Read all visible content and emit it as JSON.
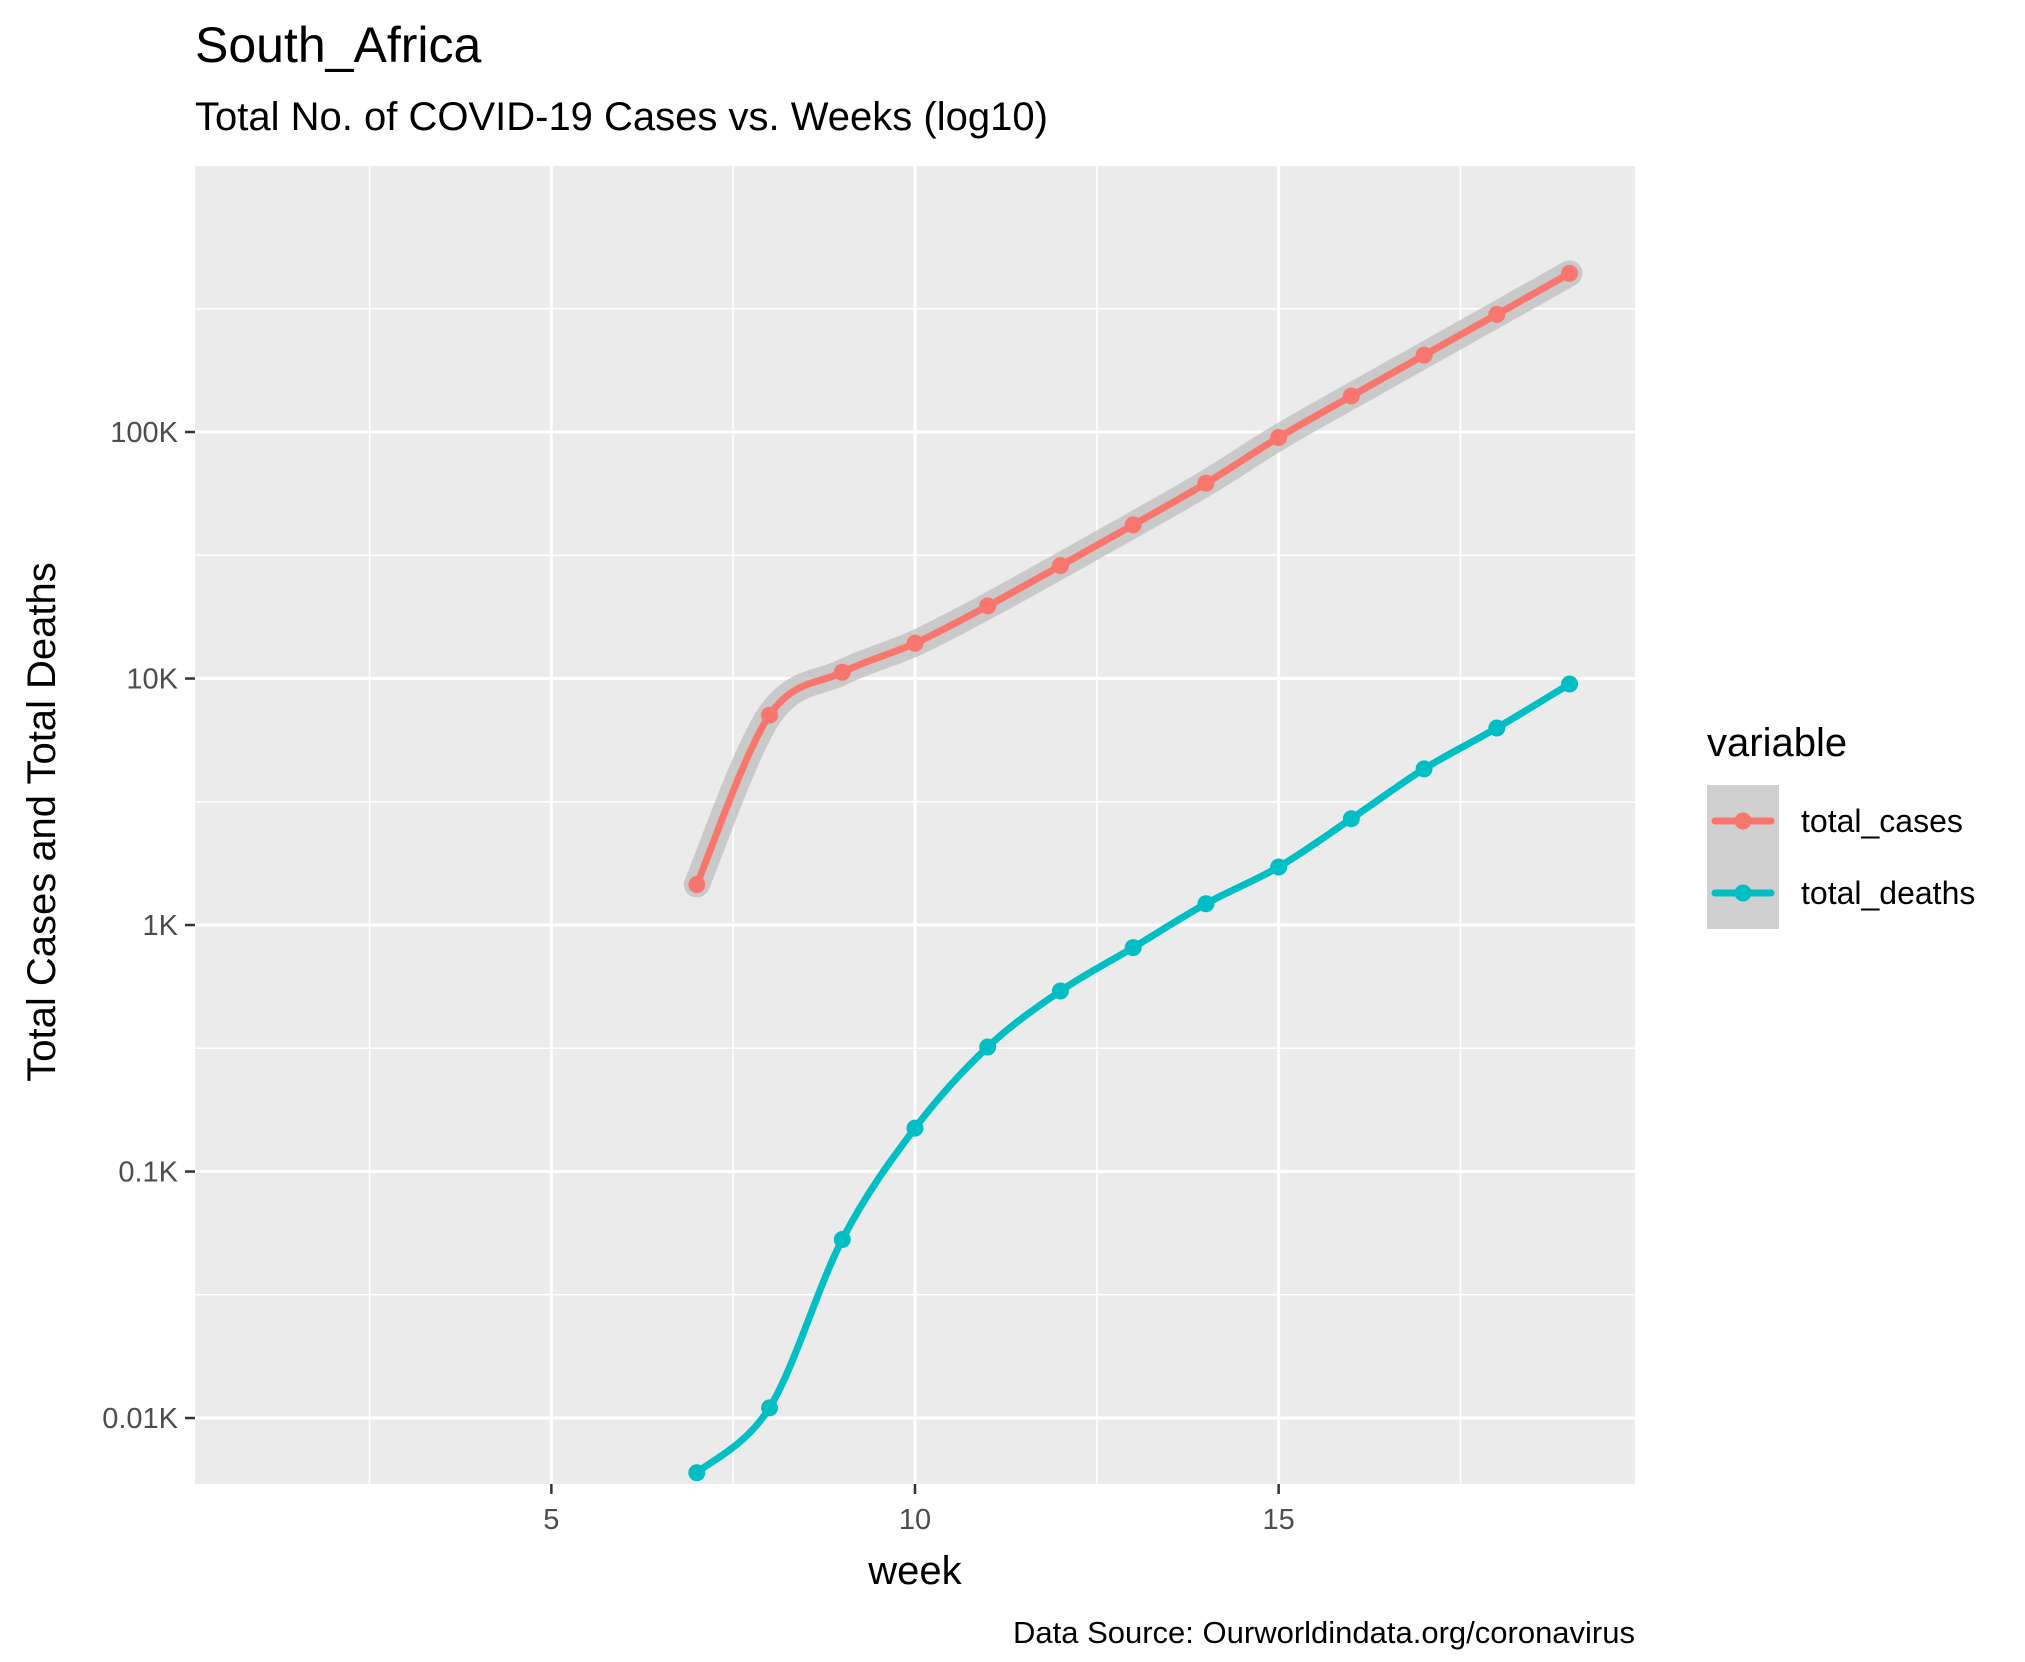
{
  "chart_data": {
    "type": "line",
    "title": "South_Africa",
    "subtitle": "Total No. of COVID-19 Cases vs. Weeks (log10)",
    "xlabel": "week",
    "ylabel": "Total Cases and Total Deaths",
    "caption": "Data Source: Ourworldindata.org/coronavirus",
    "xlim": [
      0.1,
      19.9
    ],
    "xticks": [
      5,
      10,
      15
    ],
    "ylim": [
      5.4,
      1200000
    ],
    "yscale": "log10",
    "yticks": [
      {
        "value": 10,
        "label": "0.01K"
      },
      {
        "value": 100,
        "label": "0.1K"
      },
      {
        "value": 1000,
        "label": "1K"
      },
      {
        "value": 10000,
        "label": "10K"
      },
      {
        "value": 100000,
        "label": "100K"
      }
    ],
    "grid": true,
    "legend": {
      "title": "variable",
      "position": "right"
    },
    "series": [
      {
        "name": "total_cases",
        "color": "#F8766D",
        "x": [
          7,
          8,
          9,
          10,
          11,
          12,
          13,
          14,
          15,
          16,
          17,
          18,
          19
        ],
        "y": [
          1460,
          7100,
          10600,
          13900,
          19700,
          28700,
          42000,
          62000,
          95000,
          140000,
          205000,
          300000,
          440000
        ]
      },
      {
        "name": "total_deaths",
        "color": "#00BFC4",
        "x": [
          7,
          8,
          9,
          10,
          11,
          12,
          13,
          14,
          15,
          16,
          17,
          18,
          19
        ],
        "y": [
          6,
          11,
          53,
          150,
          320,
          540,
          810,
          1220,
          1720,
          2700,
          4300,
          6300,
          9500
        ]
      }
    ]
  }
}
